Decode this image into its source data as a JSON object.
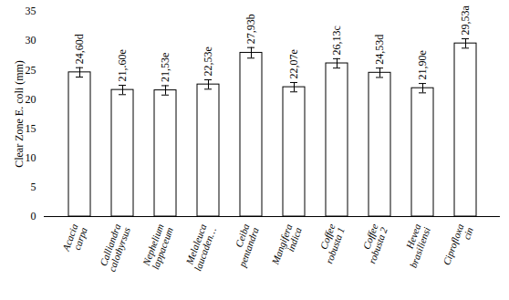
{
  "chart_data": {
    "type": "bar",
    "y_label": "Clear Zone E. coli (mm)",
    "categories": [
      "Acacia carpa",
      "Calliandra calothyrsus",
      "Nephelium lappaceum",
      "Melaleuca laucaden…",
      "Ceiba pentandra",
      "Mangifera indica",
      "Coffee robusta 1",
      "Coffee robusta 2",
      "Hevea brasiliensi",
      "Ciprofloxa cin"
    ],
    "values": [
      24.6,
      21.6,
      21.53,
      22.53,
      27.93,
      22.07,
      26.13,
      24.53,
      21.9,
      29.53
    ],
    "value_labels": [
      "24,60d",
      "21,.60e",
      "21,53e",
      "22,53e",
      "27,93b",
      "22,07e",
      "26,13c",
      "24,53d",
      "21,90e",
      "29,53a"
    ],
    "errors": [
      0.8,
      0.8,
      0.8,
      0.8,
      0.9,
      0.8,
      0.8,
      0.8,
      0.8,
      0.8
    ],
    "color": "#ffffff",
    "ylim": [
      0,
      35
    ],
    "yticks": [
      0,
      5,
      10,
      15,
      20,
      25,
      30,
      35
    ],
    "grid": false,
    "data_labels": true
  }
}
